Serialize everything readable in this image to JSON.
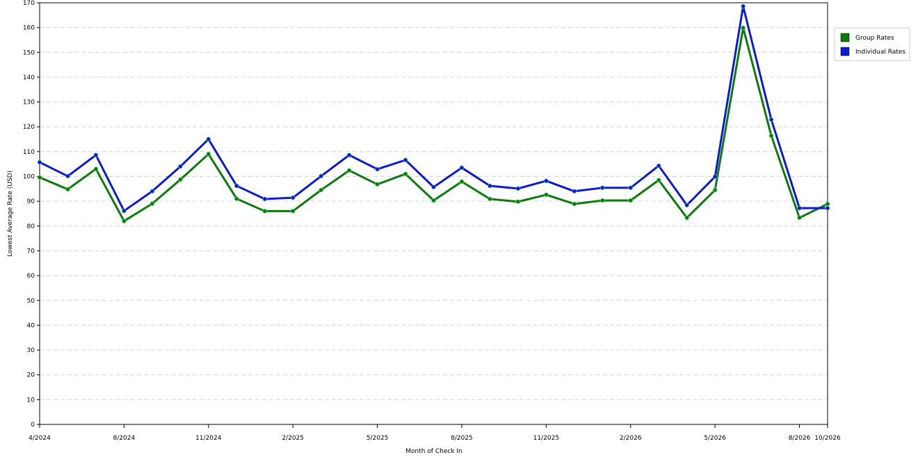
{
  "chart_data": {
    "type": "line",
    "x_label": "Month of Check In",
    "y_label": "Lowest Average Rate (USD)",
    "categories": [
      "4/2024",
      null,
      null,
      "8/2024",
      null,
      null,
      "11/2024",
      null,
      null,
      "2/2025",
      null,
      null,
      "5/2025",
      null,
      null,
      "8/2025",
      null,
      null,
      "11/2025",
      null,
      null,
      "2/2026",
      null,
      null,
      "5/2026",
      null,
      null,
      "8/2026",
      "10/2026"
    ],
    "series": [
      {
        "name": "Group Rates",
        "color": "#0a7a0a",
        "values": [
          99.6,
          94.8,
          103,
          82,
          89,
          98.7,
          109,
          91,
          86,
          86,
          94.5,
          102.4,
          96.8,
          101,
          90.3,
          97.9,
          90.9,
          89.8,
          92.6,
          88.9,
          90.3,
          90.3,
          98.5,
          83.3,
          94.5,
          159.9,
          116.4,
          83.3,
          88.9
        ]
      },
      {
        "name": "Individual Rates",
        "color": "#0a1ad2",
        "values": [
          105.7,
          100.1,
          108.6,
          86.1,
          94,
          104,
          115,
          96.2,
          90.9,
          91.4,
          100.1,
          108.6,
          102.9,
          106.6,
          95.7,
          103.5,
          96.2,
          95.1,
          98.2,
          94,
          95.4,
          95.4,
          104.3,
          88.4,
          99.9,
          168.6,
          122.9,
          87.2,
          87.2
        ]
      }
    ],
    "ylim": [
      0,
      170
    ],
    "yticks": [
      0,
      10,
      20,
      30,
      40,
      50,
      60,
      70,
      80,
      90,
      100,
      110,
      120,
      130,
      140,
      150,
      160,
      170
    ],
    "grid": true,
    "legend": "right"
  }
}
